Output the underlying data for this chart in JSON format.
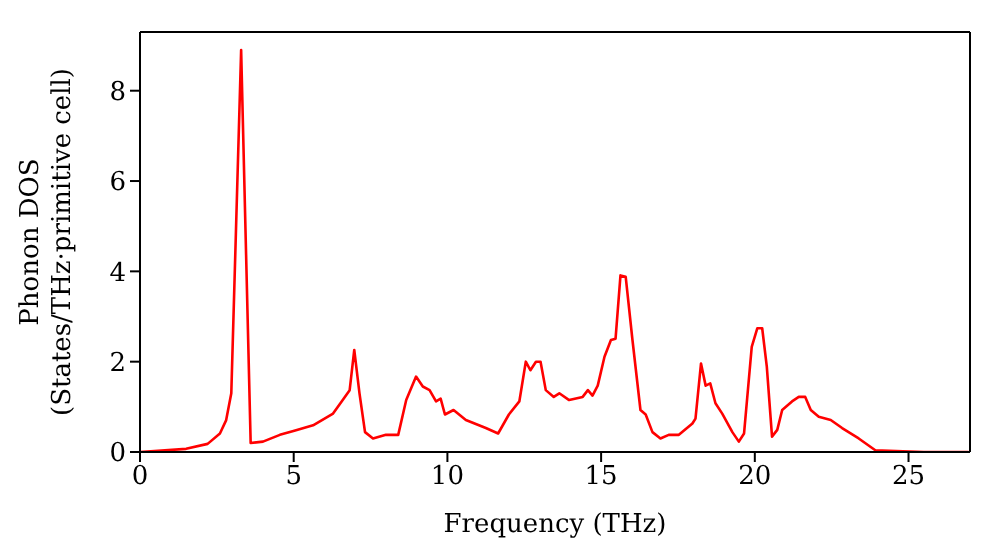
{
  "chart_data": {
    "type": "line",
    "xlabel": "Frequency (THz)",
    "ylabel": "Phonon DOS\n(States/THz·primitive cell)",
    "xlim": [
      0,
      27
    ],
    "ylim": [
      0,
      9.3
    ],
    "xticks": [
      0,
      5,
      10,
      15,
      20,
      25
    ],
    "yticks": [
      0,
      2,
      4,
      6,
      8
    ],
    "legend": false,
    "marker": "none",
    "line_style": "solid",
    "series": [
      {
        "color": "#ff0000",
        "x": [
          0,
          1.5,
          2.2,
          2.6,
          2.8,
          2.97,
          3.29,
          3.6,
          4.0,
          4.55,
          5.02,
          5.63,
          6.28,
          6.56,
          6.82,
          6.97,
          7.14,
          7.32,
          7.58,
          8.0,
          8.4,
          8.66,
          8.98,
          9.2,
          9.42,
          9.63,
          9.78,
          9.92,
          10.2,
          10.6,
          11.25,
          11.65,
          12.0,
          12.34,
          12.55,
          12.7,
          12.88,
          13.03,
          13.2,
          13.46,
          13.64,
          13.96,
          14.4,
          14.57,
          14.72,
          14.89,
          15.11,
          15.32,
          15.47,
          15.63,
          15.8,
          16.02,
          16.28,
          16.45,
          16.67,
          16.93,
          17.2,
          17.53,
          17.97,
          18.07,
          18.25,
          18.4,
          18.55,
          18.72,
          18.94,
          19.27,
          19.48,
          19.65,
          19.9,
          20.08,
          20.24,
          20.39,
          20.56,
          20.73,
          20.89,
          21.21,
          21.43,
          21.64,
          21.82,
          22.08,
          22.47,
          22.84,
          23.38,
          23.92,
          25.5,
          26.95
        ],
        "values": [
          0,
          0.07,
          0.18,
          0.41,
          0.7,
          1.3,
          8.9,
          0.2,
          0.23,
          0.38,
          0.47,
          0.59,
          0.85,
          1.12,
          1.37,
          2.26,
          1.3,
          0.44,
          0.3,
          0.38,
          0.38,
          1.15,
          1.67,
          1.45,
          1.37,
          1.12,
          1.18,
          0.83,
          0.93,
          0.71,
          0.53,
          0.41,
          0.83,
          1.12,
          2.0,
          1.81,
          2.0,
          2.0,
          1.37,
          1.22,
          1.3,
          1.15,
          1.22,
          1.37,
          1.25,
          1.47,
          2.11,
          2.48,
          2.51,
          3.91,
          3.88,
          2.48,
          0.93,
          0.83,
          0.44,
          0.3,
          0.38,
          0.38,
          0.63,
          0.74,
          1.96,
          1.47,
          1.52,
          1.08,
          0.85,
          0.44,
          0.23,
          0.41,
          2.33,
          2.74,
          2.74,
          1.89,
          0.34,
          0.49,
          0.93,
          1.12,
          1.22,
          1.22,
          0.93,
          0.78,
          0.71,
          0.53,
          0.3,
          0.04,
          0,
          0
        ]
      }
    ]
  }
}
